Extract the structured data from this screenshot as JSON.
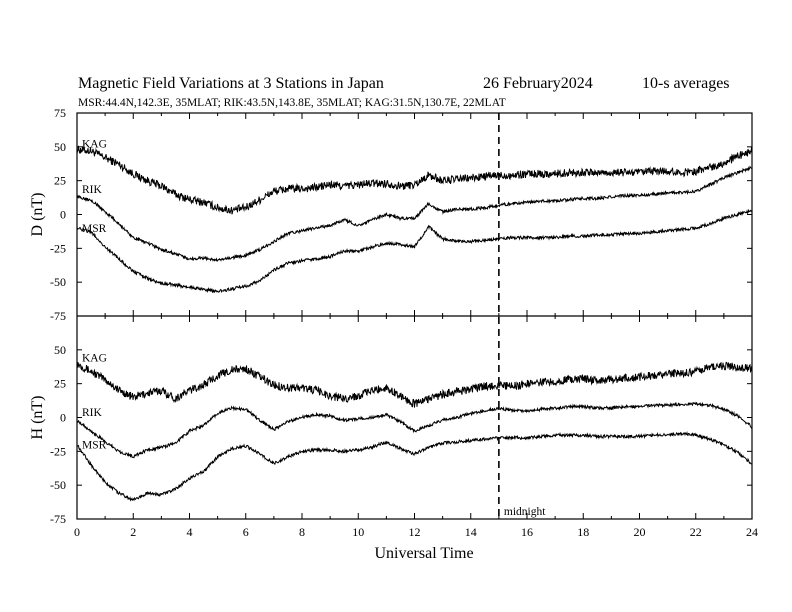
{
  "header": {
    "title": "Magnetic Field Variations at 3 Stations in Japan",
    "date": "26 February2024",
    "averaging": "10-s averages",
    "stations_line": "MSR:44.4N,142.3E, 35MLAT;  RIK:43.5N,143.8E, 35MLAT;  KAG:31.5N,130.7E, 22MLAT"
  },
  "chart_data": [
    {
      "type": "line",
      "ylabel": "D (nT)",
      "xlabel": "Universal Time",
      "xlim": [
        0,
        24
      ],
      "ylim": [
        -75,
        75
      ],
      "x_ticks": [
        0,
        2,
        4,
        6,
        8,
        10,
        12,
        14,
        16,
        18,
        20,
        22,
        24
      ],
      "y_ticks": [
        75,
        50,
        25,
        0,
        -25,
        -50,
        -75
      ],
      "grid": false,
      "x": [
        0,
        0.5,
        1,
        1.5,
        2,
        2.5,
        3,
        3.5,
        4,
        4.5,
        5,
        5.5,
        6,
        6.5,
        7,
        7.5,
        8,
        8.5,
        9,
        9.5,
        10,
        10.5,
        11,
        11.5,
        12,
        12.5,
        13,
        13.5,
        14,
        14.5,
        15,
        15.5,
        16,
        16.5,
        17,
        17.5,
        18,
        18.5,
        19,
        19.5,
        20,
        20.5,
        21,
        21.5,
        22,
        22.5,
        23,
        23.5,
        24
      ],
      "series": [
        {
          "name": "KAG",
          "values": [
            48,
            47,
            42,
            37,
            30,
            25,
            21,
            15,
            11,
            9,
            5,
            3,
            5,
            11,
            17,
            19,
            19,
            20,
            22,
            21,
            22,
            23,
            23,
            21,
            22,
            29,
            25,
            26,
            27,
            28,
            29,
            29,
            30,
            30,
            30,
            31,
            31,
            31,
            31,
            31,
            31,
            32,
            32,
            31,
            32,
            35,
            38,
            43,
            47
          ]
        },
        {
          "name": "RIK",
          "values": [
            13,
            11,
            2,
            -7,
            -17,
            -21,
            -26,
            -29,
            -33,
            -32,
            -34,
            -32,
            -30,
            -26,
            -20,
            -14,
            -12,
            -10,
            -8,
            -4,
            -8,
            -4,
            0,
            -3,
            -3,
            8,
            2,
            4,
            4,
            5,
            7,
            8,
            9,
            10,
            10,
            11,
            12,
            12,
            13,
            14,
            14,
            15,
            16,
            16,
            17,
            22,
            27,
            31,
            35
          ]
        },
        {
          "name": "MSR",
          "values": [
            -10,
            -13,
            -24,
            -33,
            -42,
            -47,
            -51,
            -52,
            -54,
            -55,
            -57,
            -55,
            -53,
            -49,
            -41,
            -36,
            -34,
            -33,
            -31,
            -27,
            -27,
            -24,
            -21,
            -22,
            -24,
            -9,
            -18,
            -20,
            -20,
            -19,
            -18,
            -17,
            -17,
            -17,
            -17,
            -16,
            -16,
            -15,
            -15,
            -14,
            -14,
            -13,
            -12,
            -11,
            -10,
            -7,
            -3,
            0,
            3
          ]
        }
      ]
    },
    {
      "type": "line",
      "ylabel": "H (nT)",
      "xlabel": "Universal Time",
      "xlim": [
        0,
        24
      ],
      "ylim": [
        -75,
        75
      ],
      "x_ticks": [
        0,
        2,
        4,
        6,
        8,
        10,
        12,
        14,
        16,
        18,
        20,
        22,
        24
      ],
      "y_ticks": [
        50,
        25,
        0,
        -25,
        -50,
        -75
      ],
      "grid": false,
      "x": [
        0,
        0.5,
        1,
        1.5,
        2,
        2.5,
        3,
        3.5,
        4,
        4.5,
        5,
        5.5,
        6,
        6.5,
        7,
        7.5,
        8,
        8.5,
        9,
        9.5,
        10,
        10.5,
        11,
        11.5,
        12,
        12.5,
        13,
        13.5,
        14,
        14.5,
        15,
        15.5,
        16,
        16.5,
        17,
        17.5,
        18,
        18.5,
        19,
        19.5,
        20,
        20.5,
        21,
        21.5,
        22,
        22.5,
        23,
        23.5,
        24
      ],
      "series": [
        {
          "name": "KAG",
          "values": [
            40,
            34,
            28,
            20,
            15,
            18,
            20,
            14,
            20,
            24,
            31,
            35,
            36,
            30,
            24,
            22,
            22,
            20,
            16,
            14,
            16,
            20,
            22,
            16,
            10,
            14,
            17,
            19,
            21,
            23,
            24,
            23,
            25,
            26,
            27,
            28,
            29,
            27,
            28,
            29,
            30,
            31,
            32,
            33,
            34,
            37,
            38,
            37,
            36
          ]
        },
        {
          "name": "RIK",
          "values": [
            -2,
            -10,
            -18,
            -25,
            -29,
            -24,
            -22,
            -19,
            -10,
            -6,
            3,
            7,
            6,
            -2,
            -9,
            -3,
            0,
            2,
            1,
            -2,
            -1,
            0,
            2,
            -3,
            -10,
            -6,
            -2,
            0,
            3,
            5,
            7,
            5,
            5,
            6,
            7,
            8,
            8,
            7,
            7,
            8,
            8,
            9,
            9,
            10,
            10,
            9,
            6,
            1,
            -7
          ]
        },
        {
          "name": "MSR",
          "values": [
            -20,
            -35,
            -48,
            -56,
            -61,
            -56,
            -57,
            -53,
            -45,
            -40,
            -29,
            -23,
            -21,
            -27,
            -34,
            -29,
            -25,
            -24,
            -24,
            -25,
            -24,
            -22,
            -18,
            -23,
            -27,
            -22,
            -19,
            -18,
            -17,
            -16,
            -15,
            -15,
            -15,
            -14,
            -13,
            -13,
            -13,
            -14,
            -14,
            -14,
            -14,
            -13,
            -13,
            -12,
            -13,
            -16,
            -20,
            -26,
            -34
          ]
        }
      ]
    }
  ],
  "annotations": {
    "marker_time": 15,
    "marker_label": "midnight"
  }
}
